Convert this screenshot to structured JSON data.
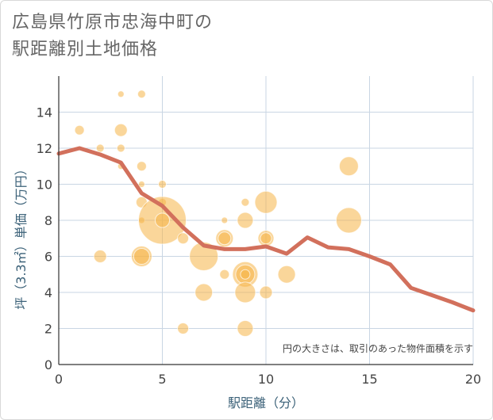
{
  "title_line1": "広島県竹原市忠海中町の",
  "title_line2": "駅距離別土地価格",
  "note": "円の大きさは、取引のあった物件面積を示す",
  "colors": {
    "bubble": "#f5b547",
    "line": "#d2705c",
    "grid": "#c9d6e3",
    "axis_title": "#3b6178"
  },
  "chart_data": {
    "type": "scatter",
    "xlabel": "駅距離（分）",
    "ylabel": "坪（3.3㎡）単価（万円）",
    "xlim": [
      0,
      20
    ],
    "ylim": [
      0,
      16
    ],
    "x_ticks": [
      0,
      5,
      10,
      15,
      20
    ],
    "y_ticks": [
      0,
      2,
      4,
      6,
      8,
      10,
      12,
      14
    ],
    "grid": true,
    "points": [
      {
        "x": 1,
        "y": 13,
        "r": 6
      },
      {
        "x": 2,
        "y": 12,
        "r": 5
      },
      {
        "x": 2,
        "y": 6,
        "r": 8
      },
      {
        "x": 3,
        "y": 15,
        "r": 4
      },
      {
        "x": 3,
        "y": 13,
        "r": 8
      },
      {
        "x": 3,
        "y": 12,
        "r": 5
      },
      {
        "x": 3,
        "y": 11,
        "r": 4
      },
      {
        "x": 4,
        "y": 15,
        "r": 5
      },
      {
        "x": 4,
        "y": 11,
        "r": 6
      },
      {
        "x": 4,
        "y": 10,
        "r": 4
      },
      {
        "x": 4,
        "y": 9,
        "r": 7
      },
      {
        "x": 4,
        "y": 8,
        "r": 4
      },
      {
        "x": 4,
        "y": 6,
        "r": 13
      },
      {
        "x": 4,
        "y": 6,
        "r": 10
      },
      {
        "x": 5,
        "y": 10,
        "r": 5
      },
      {
        "x": 5,
        "y": 9,
        "r": 5
      },
      {
        "x": 5,
        "y": 8,
        "r": 30
      },
      {
        "x": 5,
        "y": 8,
        "r": 9
      },
      {
        "x": 6,
        "y": 7,
        "r": 7
      },
      {
        "x": 6,
        "y": 2,
        "r": 7
      },
      {
        "x": 7,
        "y": 6,
        "r": 18
      },
      {
        "x": 7,
        "y": 4,
        "r": 11
      },
      {
        "x": 8,
        "y": 8,
        "r": 4
      },
      {
        "x": 8,
        "y": 7,
        "r": 11
      },
      {
        "x": 8,
        "y": 7,
        "r": 8
      },
      {
        "x": 8,
        "y": 5,
        "r": 6
      },
      {
        "x": 9,
        "y": 9,
        "r": 5
      },
      {
        "x": 9,
        "y": 8,
        "r": 10
      },
      {
        "x": 9,
        "y": 5,
        "r": 16
      },
      {
        "x": 9,
        "y": 5,
        "r": 12
      },
      {
        "x": 9,
        "y": 5,
        "r": 6
      },
      {
        "x": 9,
        "y": 4,
        "r": 13
      },
      {
        "x": 9,
        "y": 2,
        "r": 10
      },
      {
        "x": 10,
        "y": 9,
        "r": 14
      },
      {
        "x": 10,
        "y": 7,
        "r": 10
      },
      {
        "x": 10,
        "y": 7,
        "r": 7
      },
      {
        "x": 10,
        "y": 4,
        "r": 8
      },
      {
        "x": 11,
        "y": 5,
        "r": 11
      },
      {
        "x": 14,
        "y": 11,
        "r": 12
      },
      {
        "x": 14,
        "y": 8,
        "r": 16
      }
    ],
    "trend": {
      "x": [
        0,
        1,
        2,
        3,
        4,
        5,
        6,
        7,
        8,
        9,
        10,
        11,
        12,
        13,
        14,
        15,
        16,
        17,
        18,
        19,
        20
      ],
      "y": [
        11.7,
        12.0,
        11.65,
        11.2,
        9.5,
        8.8,
        7.6,
        6.6,
        6.4,
        6.4,
        6.55,
        6.15,
        7.05,
        6.5,
        6.4,
        6.0,
        5.55,
        4.25,
        3.85,
        3.45,
        3.0
      ]
    }
  }
}
